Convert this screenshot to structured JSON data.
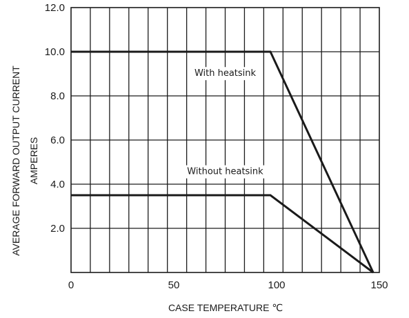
{
  "chart_data": {
    "type": "line",
    "xlabel": "CASE TEMPERATURE  ℃",
    "ylabel_lines": [
      "AVERAGE FORWARD OUTPUT CURRENT",
      "AMPERES"
    ],
    "xlim": [
      0,
      150
    ],
    "ylim": [
      0,
      12
    ],
    "x_ticks": [
      0,
      50,
      100,
      150
    ],
    "x_tick_labels": [
      "0",
      "50",
      "100",
      "150"
    ],
    "y_ticks": [
      2,
      4,
      6,
      8,
      10,
      12
    ],
    "y_tick_labels": [
      "2.0",
      "4.0",
      "6.0",
      "8.0",
      "10.0",
      "12.0"
    ],
    "grid": true,
    "grid_x_step": 9.375,
    "grid_y_step": 2,
    "series": [
      {
        "x": [
          0,
          97,
          147
        ],
        "y": [
          10.0,
          10.0,
          0
        ]
      },
      {
        "x": [
          0,
          97,
          147
        ],
        "y": [
          3.5,
          3.5,
          0
        ]
      }
    ],
    "annotations": [
      {
        "text": "With heatsink",
        "x": 75,
        "y": 8.9
      },
      {
        "text": "Without heatsink",
        "x": 75,
        "y": 4.45
      }
    ]
  }
}
